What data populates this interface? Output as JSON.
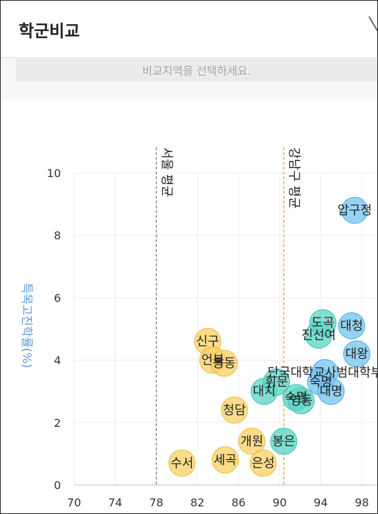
{
  "header": {
    "title": "학군비교"
  },
  "filter": {
    "placeholder": "비교지역을 선택하세요."
  },
  "chart_data": {
    "type": "scatter",
    "xlabel": "",
    "ylabel": "특목고진학률(%)",
    "xlim": [
      70,
      99.5
    ],
    "ylim": [
      0,
      10
    ],
    "x_ticks": [
      70,
      74,
      78,
      82,
      86,
      90,
      94,
      98
    ],
    "y_ticks": [
      0,
      2,
      4,
      6,
      8,
      10
    ],
    "grid": true,
    "reference_lines": [
      {
        "label": "서울 평균",
        "x": 78,
        "color": "#5a7fa8"
      },
      {
        "label": "강남구 평균",
        "x": 90.4,
        "color": "#e0a030"
      }
    ],
    "colors": {
      "yellow": "#f9d26a",
      "teal": "#5fd6c6",
      "blue": "#78c6ef"
    },
    "points": [
      {
        "label": "수서",
        "x": 80.5,
        "y": 0.7,
        "group": "yellow"
      },
      {
        "label": "신구",
        "x": 83,
        "y": 4.6,
        "group": "yellow"
      },
      {
        "label": "언북",
        "x": 83.5,
        "y": 4.0,
        "group": "yellow"
      },
      {
        "label": "봉동",
        "x": 84.6,
        "y": 3.9,
        "group": "yellow"
      },
      {
        "label": "청담",
        "x": 85.6,
        "y": 2.4,
        "group": "yellow"
      },
      {
        "label": "세곡",
        "x": 84.7,
        "y": 0.8,
        "group": "yellow"
      },
      {
        "label": "개원",
        "x": 87.3,
        "y": 1.4,
        "group": "yellow"
      },
      {
        "label": "은성",
        "x": 88.4,
        "y": 0.7,
        "group": "yellow"
      },
      {
        "label": "봉은",
        "x": 90.4,
        "y": 1.4,
        "group": "teal"
      },
      {
        "label": "대치",
        "x": 88.5,
        "y": 3.0,
        "group": "teal"
      },
      {
        "label": "휘문",
        "x": 89.7,
        "y": 3.3,
        "group": "teal"
      },
      {
        "label": "숙명",
        "x": 91.6,
        "y": 2.8,
        "group": "teal"
      },
      {
        "label": "영동",
        "x": 92.1,
        "y": 2.7,
        "group": "teal"
      },
      {
        "label": "진선여",
        "x": 93.8,
        "y": 4.8,
        "group": "teal"
      },
      {
        "label": "도곡",
        "x": 94.2,
        "y": 5.2,
        "group": "teal"
      },
      {
        "label": "단국대학교사범대학부",
        "x": 94.4,
        "y": 3.6,
        "group": "blue"
      },
      {
        "label": "숙명",
        "x": 94.0,
        "y": 3.3,
        "group": "blue"
      },
      {
        "label": "대명",
        "x": 95.0,
        "y": 3.0,
        "group": "blue"
      },
      {
        "label": "대청",
        "x": 97.0,
        "y": 5.1,
        "group": "blue"
      },
      {
        "label": "대왕",
        "x": 97.5,
        "y": 4.2,
        "group": "blue"
      },
      {
        "label": "압구정",
        "x": 97.3,
        "y": 8.8,
        "group": "blue"
      }
    ]
  }
}
